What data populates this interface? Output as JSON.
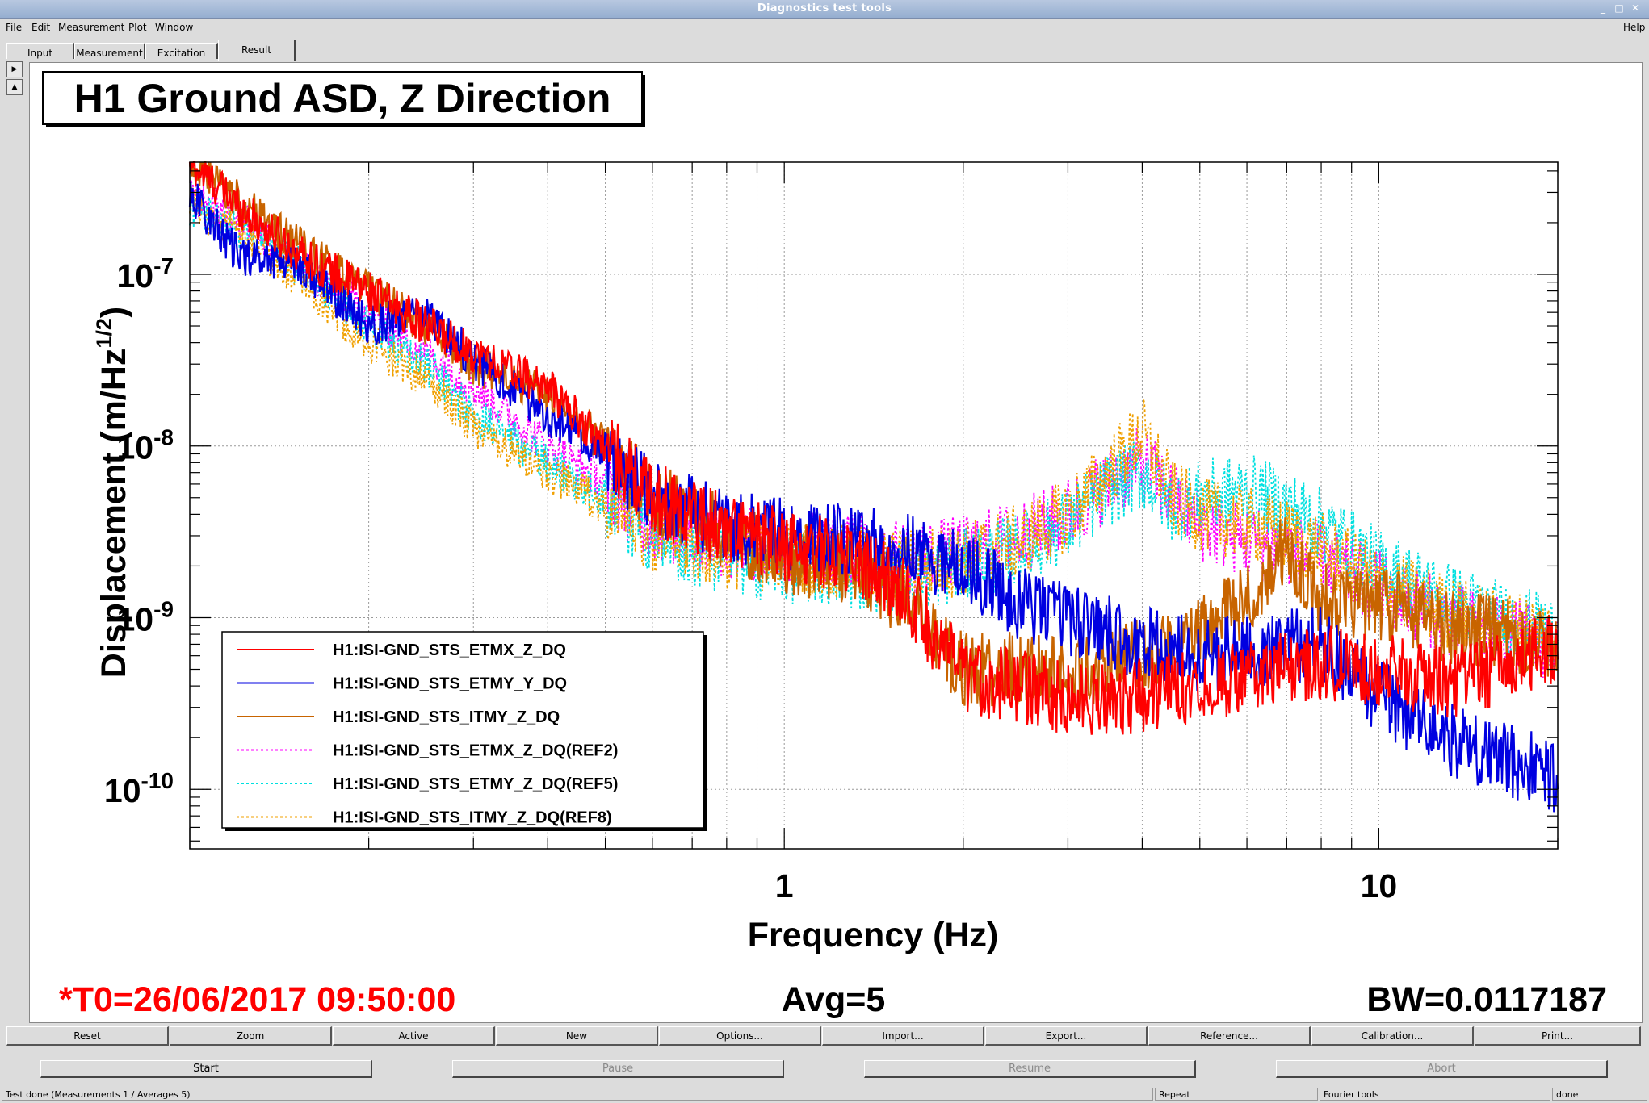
{
  "window": {
    "title": "Diagnostics test tools"
  },
  "menu": {
    "file": "File",
    "edit": "Edit",
    "measurement": "Measurement",
    "plot": "Plot",
    "window": "Window",
    "help": "Help"
  },
  "tabs": [
    "Input",
    "Measurement",
    "Excitation",
    "Result"
  ],
  "active_tab": "Result",
  "plot": {
    "title": "H1 Ground ASD, Z Direction",
    "xlabel": "Frequency (Hz)",
    "ylabel": "Displacement (m/Hz",
    "ylabel_sup": "1/2",
    "ylabel_close": ")",
    "t0": "*T0=26/06/2017 09:50:00",
    "avg": "Avg=5",
    "bw": "BW=0.0117187"
  },
  "chart_data": {
    "type": "line",
    "xscale": "log",
    "yscale": "log",
    "xlim": [
      0.1,
      20
    ],
    "ylim": [
      4.5e-11,
      4.5e-07
    ],
    "xticks": [
      "1",
      "10"
    ],
    "yticks": [
      {
        "base": "10",
        "exp": "-7"
      },
      {
        "base": "10",
        "exp": "-8"
      },
      {
        "base": "10",
        "exp": "-9"
      },
      {
        "base": "10",
        "exp": "-10"
      }
    ],
    "grid": true,
    "legend_position": "bottom-left",
    "series": [
      {
        "name": "H1:ISI-GND_STS_ETMX_Z_DQ",
        "color": "#ff0000",
        "style": "solid",
        "x": [
          0.1,
          0.13,
          0.16,
          0.2,
          0.25,
          0.3,
          0.4,
          0.5,
          0.6,
          0.8,
          1.0,
          1.3,
          1.6,
          2.0,
          2.5,
          3.0,
          4.0,
          5.0,
          6.0,
          8.0,
          10.0,
          13.0,
          16.0,
          20.0
        ],
        "y": [
          4.5e-07,
          2e-07,
          1.2e-07,
          8e-08,
          5e-08,
          3.5e-08,
          2.2e-08,
          1e-08,
          5e-09,
          3.3e-09,
          2.6e-09,
          2.3e-09,
          1.4e-09,
          4.5e-10,
          4e-10,
          3.3e-10,
          3.5e-10,
          4.2e-10,
          4.5e-10,
          5.5e-10,
          5e-10,
          4.2e-10,
          5e-10,
          7e-10
        ]
      },
      {
        "name": "H1:ISI-GND_STS_ETMY_Y_DQ",
        "color": "#0000e0",
        "style": "solid",
        "x": [
          0.1,
          0.12,
          0.15,
          0.2,
          0.25,
          0.3,
          0.4,
          0.5,
          0.6,
          0.8,
          1.0,
          1.3,
          1.6,
          2.0,
          2.5,
          3.0,
          4.0,
          5.0,
          6.0,
          8.0,
          10.0,
          13.0,
          16.0,
          20.0
        ],
        "y": [
          3e-07,
          1.3e-07,
          1.2e-07,
          5e-08,
          6e-08,
          3.2e-08,
          1.5e-08,
          9e-09,
          5e-09,
          3.5e-09,
          3e-09,
          2.8e-09,
          2.5e-09,
          2e-09,
          1.2e-09,
          1e-09,
          7e-10,
          6e-10,
          6.5e-10,
          7e-10,
          3.5e-10,
          2e-10,
          1.5e-10,
          1.2e-10
        ]
      },
      {
        "name": "H1:ISI-GND_STS_ITMY_Z_DQ",
        "color": "#c86400",
        "style": "solid",
        "x": [
          0.1,
          0.13,
          0.16,
          0.2,
          0.25,
          0.3,
          0.4,
          0.5,
          0.6,
          0.8,
          1.0,
          1.3,
          1.6,
          2.0,
          2.5,
          3.0,
          4.0,
          5.0,
          6.0,
          7.0,
          8.0,
          10.0,
          13.0,
          16.0,
          20.0
        ],
        "y": [
          4.5e-07,
          2.2e-07,
          1.3e-07,
          8e-08,
          5e-08,
          3e-08,
          2e-08,
          1e-08,
          5e-09,
          3e-09,
          2.2e-09,
          2e-09,
          1.2e-09,
          5e-10,
          5e-10,
          4.5e-10,
          6e-10,
          8e-10,
          1.3e-09,
          2.5e-09,
          1.3e-09,
          1.2e-09,
          9e-10,
          8e-10,
          7e-10
        ]
      },
      {
        "name": "H1:ISI-GND_STS_ETMX_Z_DQ(REF2)",
        "color": "#ff00ff",
        "style": "dotted",
        "x": [
          0.1,
          0.13,
          0.16,
          0.2,
          0.25,
          0.3,
          0.4,
          0.5,
          0.6,
          0.8,
          1.0,
          1.3,
          1.6,
          2.0,
          2.5,
          3.0,
          3.5,
          4.0,
          4.5,
          5.0,
          6.0,
          7.0,
          8.0,
          10.0,
          13.0,
          16.0,
          20.0
        ],
        "y": [
          3e-07,
          1.8e-07,
          1e-07,
          6e-08,
          3.5e-08,
          2.2e-08,
          1e-08,
          6e-09,
          3.5e-09,
          2.8e-09,
          2.6e-09,
          2.5e-09,
          2.2e-09,
          2.4e-09,
          3e-09,
          4e-09,
          6e-09,
          8e-09,
          5e-09,
          3.5e-09,
          2.8e-09,
          2.5e-09,
          2.2e-09,
          1.5e-09,
          1e-09,
          8e-10,
          7e-10
        ]
      },
      {
        "name": "H1:ISI-GND_STS_ETMY_Z_DQ(REF5)",
        "color": "#00e0e0",
        "style": "dotted",
        "x": [
          0.1,
          0.13,
          0.16,
          0.2,
          0.25,
          0.3,
          0.4,
          0.5,
          0.6,
          0.8,
          1.0,
          1.3,
          1.6,
          2.0,
          2.5,
          3.0,
          3.5,
          4.0,
          4.5,
          5.0,
          6.0,
          7.0,
          8.0,
          10.0,
          13.0,
          16.0,
          20.0
        ],
        "y": [
          2.5e-07,
          1.6e-07,
          1e-07,
          5e-08,
          3e-08,
          1.5e-08,
          8e-09,
          5e-09,
          3e-09,
          2.2e-09,
          2e-09,
          1.8e-09,
          1.7e-09,
          2e-09,
          2.5e-09,
          3.5e-09,
          5.5e-09,
          7e-09,
          4.5e-09,
          5e-09,
          5.5e-09,
          4.5e-09,
          3.5e-09,
          2e-09,
          1.3e-09,
          1e-09,
          8e-10
        ]
      },
      {
        "name": "H1:ISI-GND_STS_ITMY_Z_DQ(REF8)",
        "color": "#f0a000",
        "style": "dotted",
        "x": [
          0.1,
          0.13,
          0.16,
          0.2,
          0.25,
          0.3,
          0.4,
          0.5,
          0.6,
          0.8,
          1.0,
          1.3,
          1.6,
          2.0,
          2.5,
          3.0,
          3.5,
          4.0,
          4.5,
          5.0,
          6.0,
          7.0,
          8.0,
          10.0,
          13.0,
          16.0,
          20.0
        ],
        "y": [
          2.5e-07,
          1.5e-07,
          8e-08,
          4e-08,
          2.5e-08,
          1.3e-08,
          7e-09,
          4.5e-09,
          3e-09,
          2.4e-09,
          2.3e-09,
          2.1e-09,
          2e-09,
          2.2e-09,
          2.8e-09,
          4e-09,
          7e-09,
          1.2e-08,
          5e-09,
          4e-09,
          3.5e-09,
          3e-09,
          2.5e-09,
          1.6e-09,
          1.1e-09,
          9e-10,
          8e-10
        ]
      }
    ]
  },
  "plot_buttons": [
    "Reset",
    "Zoom",
    "Active",
    "New",
    "Options...",
    "Import...",
    "Export...",
    "Reference...",
    "Calibration...",
    "Print..."
  ],
  "control_buttons": {
    "start": "Start",
    "pause": "Pause",
    "resume": "Resume",
    "abort": "Abort"
  },
  "status": {
    "message": "Test done (Measurements 1 / Averages 5)",
    "repeat": "Repeat",
    "tool": "Fourier tools",
    "state": "done"
  }
}
